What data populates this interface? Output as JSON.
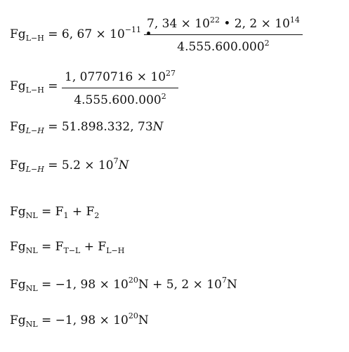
{
  "line1": {
    "lhs_main": "Fg",
    "lhs_sub": "L−H",
    "equals": "=",
    "coef": "6, 67 × 10",
    "coef_exp": "−11",
    "dot": "•",
    "num_a": "7, 34 × 10",
    "num_a_exp": "22",
    "num_dot": "•",
    "num_b": "2, 2 × 10",
    "num_b_exp": "14",
    "den": "4.555.600.000",
    "den_exp": "2"
  },
  "line2": {
    "lhs_main": "Fg",
    "lhs_sub": "L−H",
    "equals": "=",
    "num": "1, 0770716 × 10",
    "num_exp": "27",
    "den": "4.555.600.000",
    "den_exp": "2"
  },
  "line3": {
    "lhs_main": "Fg",
    "lhs_sub": "L−H",
    "rhs": "= 51.898.332, 73",
    "unit": "N"
  },
  "line4": {
    "lhs_main": "Fg",
    "lhs_sub": "L−H",
    "rhs": "= 5.2 × 10",
    "rhs_exp": "7",
    "unit": "N"
  },
  "line5": {
    "lhs_main": "Fg",
    "lhs_sub": "NL",
    "rhs_a": "= F",
    "rhs_a_sub": "1",
    "plus": " + F",
    "rhs_b_sub": "2"
  },
  "line6": {
    "lhs_main": "Fg",
    "lhs_sub": "NL",
    "rhs_a": "= F",
    "rhs_a_sub": "T−L",
    "plus": " + F",
    "rhs_b_sub": "L−H"
  },
  "line7": {
    "lhs_main": "Fg",
    "lhs_sub": "NL",
    "rhs_a": "= −1, 98 × 10",
    "rhs_a_exp": "20",
    "rhs_mid": "N + 5, 2 × 10",
    "rhs_b_exp": "7",
    "unit": "N"
  },
  "line8": {
    "lhs_main": "Fg",
    "lhs_sub": "NL",
    "rhs": "= −1, 98 × 10",
    "rhs_exp": "20",
    "unit": "N"
  }
}
